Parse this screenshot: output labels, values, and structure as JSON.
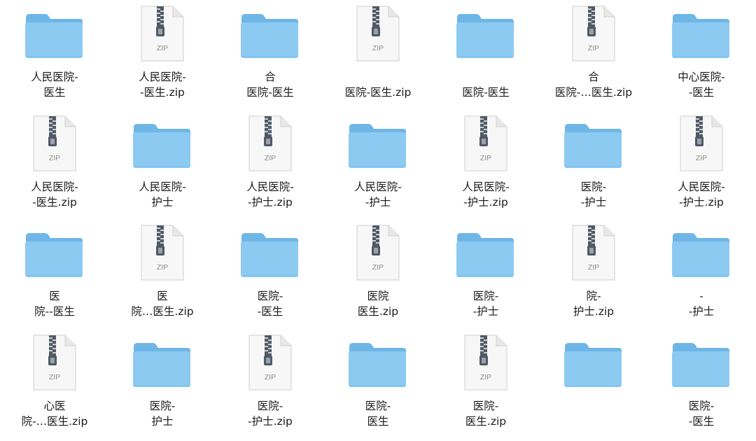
{
  "window": {
    "title": ""
  },
  "files": [
    {
      "kind": "folder",
      "label": "人民医院-\n医生"
    },
    {
      "kind": "zip",
      "zip_text": "ZIP",
      "label": "人民医院-\n-医生.zip"
    },
    {
      "kind": "folder",
      "label": "合\n医院-医生"
    },
    {
      "kind": "zip",
      "zip_text": "ZIP",
      "label": "\n医院-医生.zip"
    },
    {
      "kind": "folder",
      "label": "\n医院-医生"
    },
    {
      "kind": "zip",
      "zip_text": "ZIP",
      "label": "合\n医院-…医生.zip"
    },
    {
      "kind": "folder",
      "label": "中心医院-\n-医生"
    },
    {
      "kind": "zip",
      "zip_text": "ZIP",
      "label": "人民医院-\n-医生.zip"
    },
    {
      "kind": "folder",
      "label": "人民医院-\n护士"
    },
    {
      "kind": "zip",
      "zip_text": "ZIP",
      "label": "人民医院-\n-护士.zip"
    },
    {
      "kind": "folder",
      "label": "人民医院-\n-护士"
    },
    {
      "kind": "zip",
      "zip_text": "ZIP",
      "label": "人民医院-\n-护士.zip"
    },
    {
      "kind": "folder",
      "label": "医院-\n-护士"
    },
    {
      "kind": "zip",
      "zip_text": "ZIP",
      "label": "人民医院-\n-护士.zip"
    },
    {
      "kind": "folder",
      "label": "医\n院--医生"
    },
    {
      "kind": "zip",
      "zip_text": "ZIP",
      "label": "医\n院…医生.zip"
    },
    {
      "kind": "folder",
      "label": "医院-\n-医生"
    },
    {
      "kind": "zip",
      "zip_text": "ZIP",
      "label": "医院\n医生.zip"
    },
    {
      "kind": "folder",
      "label": "医院-\n-护士"
    },
    {
      "kind": "zip",
      "zip_text": "ZIP",
      "label": "院-\n护士.zip"
    },
    {
      "kind": "folder",
      "label": "-\n-护士"
    },
    {
      "kind": "zip",
      "zip_text": "ZIP",
      "label": "心医\n院-…医生.zip"
    },
    {
      "kind": "folder",
      "label": "医院-\n护士"
    },
    {
      "kind": "zip",
      "zip_text": "ZIP",
      "label": "医院-\n-护士.zip"
    },
    {
      "kind": "folder",
      "label": "医院-\n医生"
    },
    {
      "kind": "zip",
      "zip_text": "ZIP",
      "label": "医院-\n医生.zip"
    },
    {
      "kind": "folder",
      "label": ""
    },
    {
      "kind": "folder",
      "label": "医院-\n-医生"
    }
  ],
  "colors": {
    "folder_back": "#6eb6e6",
    "folder_front": "#8ccaf2",
    "zip_paper": "#f7f7f7",
    "zip_zipper": "#505a66"
  }
}
